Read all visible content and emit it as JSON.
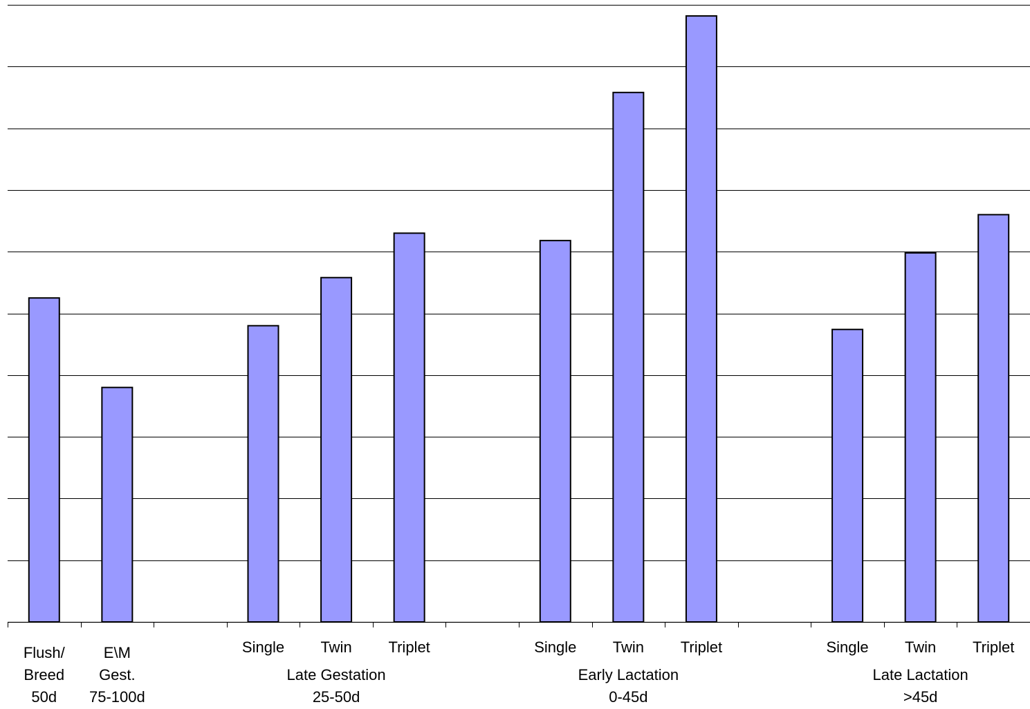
{
  "chart_data": {
    "type": "bar",
    "title": "",
    "xlabel": "",
    "ylabel": "",
    "ylim": [
      0,
      10
    ],
    "grid": true,
    "colors": {
      "bar": "#9999ff",
      "stroke": "#000000"
    },
    "slots": 14,
    "bars": [
      {
        "slot": 0,
        "value": 5.25
      },
      {
        "slot": 1,
        "value": 3.8
      },
      {
        "slot": 3,
        "value": 4.8
      },
      {
        "slot": 4,
        "value": 5.58
      },
      {
        "slot": 5,
        "value": 6.3
      },
      {
        "slot": 7,
        "value": 6.18
      },
      {
        "slot": 8,
        "value": 8.58
      },
      {
        "slot": 9,
        "value": 9.82
      },
      {
        "slot": 11,
        "value": 4.74
      },
      {
        "slot": 12,
        "value": 5.98
      },
      {
        "slot": 13,
        "value": 6.6
      }
    ],
    "sub_labels": [
      {
        "slot": 3,
        "text": "Single"
      },
      {
        "slot": 4,
        "text": "Twin"
      },
      {
        "slot": 5,
        "text": "Triplet"
      },
      {
        "slot": 7,
        "text": "Single"
      },
      {
        "slot": 8,
        "text": "Twin"
      },
      {
        "slot": 9,
        "text": "Triplet"
      },
      {
        "slot": 11,
        "text": "Single"
      },
      {
        "slot": 12,
        "text": "Twin"
      },
      {
        "slot": 13,
        "text": "Triplet"
      }
    ],
    "group_labels": [
      {
        "slot": 0,
        "lines": [
          "Flush/",
          "Breed",
          "50d"
        ]
      },
      {
        "slot": 1,
        "lines": [
          "E\\M",
          "Gest.",
          "75-100d"
        ]
      },
      {
        "slot": 4,
        "lines": [
          "Late Gestation",
          "25-50d"
        ]
      },
      {
        "slot": 8,
        "lines": [
          "Early Lactation",
          "0-45d"
        ]
      },
      {
        "slot": 12,
        "lines": [
          "Late Lactation",
          ">45d"
        ]
      }
    ]
  }
}
